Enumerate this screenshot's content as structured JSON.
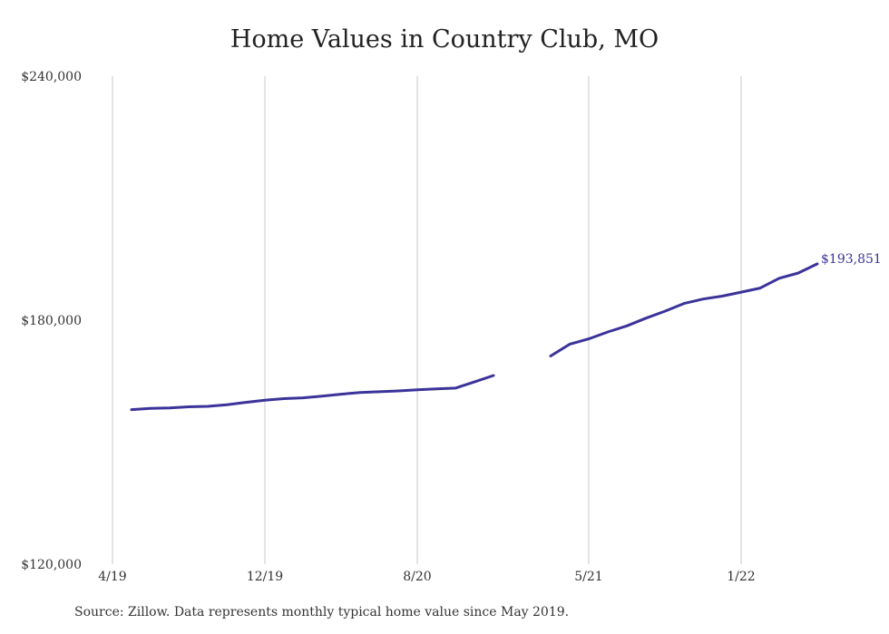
{
  "chart_data": {
    "type": "line",
    "title": "Home Values in Country Club, MO",
    "xlabel": "",
    "ylabel": "",
    "ylim": [
      120000,
      240000
    ],
    "yticks": [
      {
        "value": 120000,
        "label": "$120,000"
      },
      {
        "value": 180000,
        "label": "$180,000"
      },
      {
        "value": 240000,
        "label": "$240,000"
      }
    ],
    "xticks": [
      {
        "month": 0,
        "label": "4/19"
      },
      {
        "month": 8,
        "label": "12/19"
      },
      {
        "month": 16,
        "label": "8/20"
      },
      {
        "month": 25,
        "label": "5/21"
      },
      {
        "month": 33,
        "label": "1/22"
      }
    ],
    "grid": "vertical",
    "series": [
      {
        "name": "",
        "color": "#3b3399",
        "points": [
          {
            "date": "2019-05",
            "value": 158000
          },
          {
            "date": "2019-06",
            "value": 158300
          },
          {
            "date": "2019-07",
            "value": 158400
          },
          {
            "date": "2019-08",
            "value": 158700
          },
          {
            "date": "2019-09",
            "value": 158800
          },
          {
            "date": "2019-10",
            "value": 159200
          },
          {
            "date": "2019-11",
            "value": 159800
          },
          {
            "date": "2019-12",
            "value": 160300
          },
          {
            "date": "2020-01",
            "value": 160700
          },
          {
            "date": "2020-02",
            "value": 160900
          },
          {
            "date": "2020-03",
            "value": 161300
          },
          {
            "date": "2020-04",
            "value": 161800
          },
          {
            "date": "2020-05",
            "value": 162200
          },
          {
            "date": "2020-06",
            "value": 162400
          },
          {
            "date": "2020-07",
            "value": 162600
          },
          {
            "date": "2020-08",
            "value": 162900
          },
          {
            "date": "2020-09",
            "value": 163100
          },
          {
            "date": "2020-10",
            "value": 163300
          },
          {
            "date": "2020-11",
            "value": 164800
          },
          {
            "date": "2020-12",
            "value": 166400
          },
          {
            "date": "2021-01",
            "value": null
          },
          {
            "date": "2021-02",
            "value": null
          },
          {
            "date": "2021-03",
            "value": 171200
          },
          {
            "date": "2021-04",
            "value": 174100
          },
          {
            "date": "2021-05",
            "value": 175400
          },
          {
            "date": "2021-06",
            "value": 177100
          },
          {
            "date": "2021-07",
            "value": 178600
          },
          {
            "date": "2021-08",
            "value": 180500
          },
          {
            "date": "2021-09",
            "value": 182200
          },
          {
            "date": "2021-10",
            "value": 184100
          },
          {
            "date": "2021-11",
            "value": 185200
          },
          {
            "date": "2021-12",
            "value": 185900
          },
          {
            "date": "2022-01",
            "value": 186900
          },
          {
            "date": "2022-02",
            "value": 187900
          },
          {
            "date": "2022-03",
            "value": 190300
          },
          {
            "date": "2022-04",
            "value": 191600
          },
          {
            "date": "2022-05",
            "value": 193851
          }
        ]
      }
    ],
    "annotations": [
      {
        "text": "$193,851",
        "date": "2022-05",
        "value": 193851,
        "color": "#3b3399"
      }
    ]
  },
  "source": "Source: Zillow. Data represents monthly typical home value since May 2019."
}
